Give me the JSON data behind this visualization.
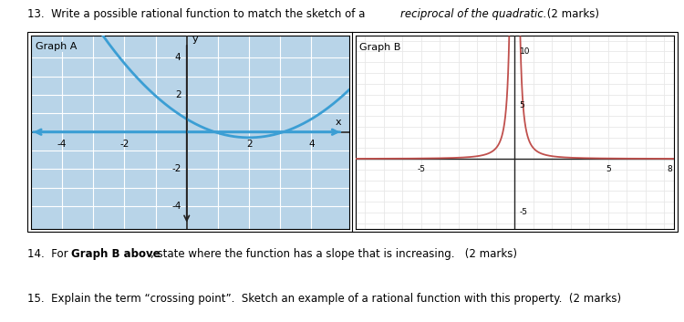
{
  "title_part1": "13.  Write a possible rational function to match the sketch of a ",
  "title_italic": "reciprocal of the quadratic.",
  "title_part2": " (2 marks)",
  "graph_a_label": "Graph A",
  "graph_b_label": "Graph B",
  "q14_plain1": "14.  For ",
  "q14_bold": "Graph B above",
  "q14_plain2": ", state where the function has a slope that is increasing.   (2 marks)",
  "q15": "15.  Explain the term “crossing point”.  Sketch an example of a rational function with this property.  (2 marks)",
  "graph_a_xlim": [
    -5,
    5.2
  ],
  "graph_a_ylim": [
    -5.2,
    5.2
  ],
  "graph_b_xlim": [
    -8.5,
    8.5
  ],
  "graph_b_ylim": [
    -6.5,
    11.5
  ],
  "parabola_color": "#3b9ed4",
  "arrow_color": "#3b9ed4",
  "reciprocal_color": "#c0504d",
  "bg_color": "#ffffff",
  "grid_a_color": "#b8d4e8",
  "grid_a_line_color": "#ffffff",
  "grid_b_color": "#e8e8e8",
  "axis_color": "#222222"
}
